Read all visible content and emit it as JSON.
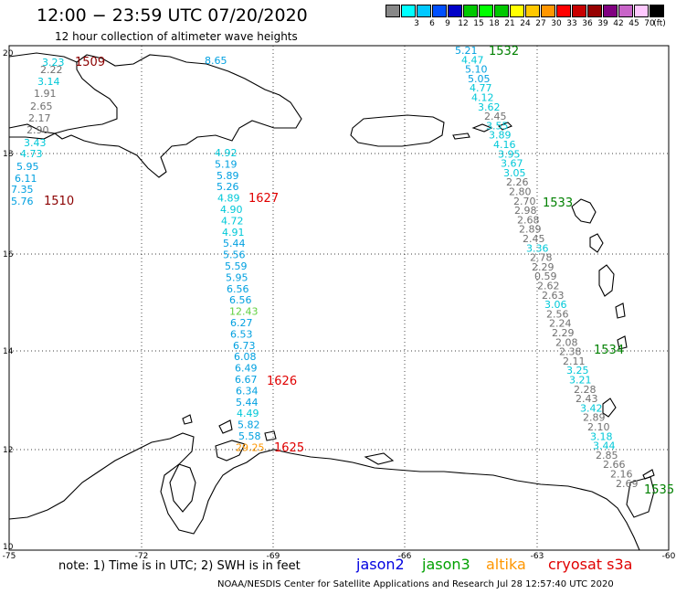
{
  "title": "12:00 − 23:59 UTC 07/20/2020",
  "subtitle": "12 hour collection of altimeter wave heights",
  "colorbar": {
    "unit": "(ft)",
    "boxes": [
      {
        "label": "",
        "color": "#888888"
      },
      {
        "label": "3",
        "color": "#00ffff"
      },
      {
        "label": "6",
        "color": "#00c8ff"
      },
      {
        "label": "9",
        "color": "#0050ff"
      },
      {
        "label": "12",
        "color": "#0000c8"
      },
      {
        "label": "15",
        "color": "#00c800"
      },
      {
        "label": "18",
        "color": "#00ff00"
      },
      {
        "label": "21",
        "color": "#00c800"
      },
      {
        "label": "24",
        "color": "#ffff00"
      },
      {
        "label": "27",
        "color": "#ffc800"
      },
      {
        "label": "30",
        "color": "#ff9600"
      },
      {
        "label": "33",
        "color": "#ff0000"
      },
      {
        "label": "36",
        "color": "#c80000"
      },
      {
        "label": "39",
        "color": "#960000"
      },
      {
        "label": "42",
        "color": "#800080"
      },
      {
        "label": "45",
        "color": "#c864c8"
      },
      {
        "label": "70",
        "color": "#ffc8ff"
      },
      {
        "label": "",
        "color": "#000000"
      }
    ]
  },
  "axes": {
    "lon": [
      "-75",
      "-72",
      "-69",
      "-66",
      "-63",
      "-60"
    ],
    "lat": [
      "20",
      "18",
      "16",
      "14",
      "12",
      "10"
    ]
  },
  "passes": [
    {
      "time": "1509",
      "color": "#8b0000"
    },
    {
      "time": "1510",
      "color": "#8b0000"
    },
    {
      "time": "1627",
      "color": "#e00000"
    },
    {
      "time": "1626",
      "color": "#e00000"
    },
    {
      "time": "1625",
      "color": "#e00000"
    },
    {
      "time": "1532",
      "color": "#008000"
    },
    {
      "time": "1533",
      "color": "#008000"
    },
    {
      "time": "1534",
      "color": "#008000"
    },
    {
      "time": "1535",
      "color": "#008000"
    }
  ],
  "swh": [
    {
      "v": "3.23",
      "c": "#00c8d8"
    },
    {
      "v": "2.22",
      "c": "#707070"
    },
    {
      "v": "3.14",
      "c": "#00c8d8"
    },
    {
      "v": "1.91",
      "c": "#707070"
    },
    {
      "v": "2.65",
      "c": "#707070"
    },
    {
      "v": "2.17",
      "c": "#707070"
    },
    {
      "v": "2.90",
      "c": "#707070"
    },
    {
      "v": "3.43",
      "c": "#00c8d8"
    },
    {
      "v": "4.73",
      "c": "#00c8d8"
    },
    {
      "v": "5.95",
      "c": "#00a0e0"
    },
    {
      "v": "6.11",
      "c": "#00a0e0"
    },
    {
      "v": "7.35",
      "c": "#00a0e0"
    },
    {
      "v": "5.76",
      "c": "#00a0e0"
    },
    {
      "v": "8.65",
      "c": "#00a0e0"
    },
    {
      "v": "4.92",
      "c": "#00c8d8"
    },
    {
      "v": "5.19",
      "c": "#00a0e0"
    },
    {
      "v": "5.89",
      "c": "#00a0e0"
    },
    {
      "v": "5.26",
      "c": "#00a0e0"
    },
    {
      "v": "4.89",
      "c": "#00c8d8"
    },
    {
      "v": "4.90",
      "c": "#00c8d8"
    },
    {
      "v": "4.72",
      "c": "#00c8d8"
    },
    {
      "v": "4.91",
      "c": "#00c8d8"
    },
    {
      "v": "5.44",
      "c": "#00a0e0"
    },
    {
      "v": "5.56",
      "c": "#00a0e0"
    },
    {
      "v": "5.59",
      "c": "#00a0e0"
    },
    {
      "v": "5.95",
      "c": "#00a0e0"
    },
    {
      "v": "6.56",
      "c": "#00a0e0"
    },
    {
      "v": "6.56",
      "c": "#00a0e0"
    },
    {
      "v": "12.43",
      "c": "#60d040"
    },
    {
      "v": "6.27",
      "c": "#00a0e0"
    },
    {
      "v": "6.53",
      "c": "#00a0e0"
    },
    {
      "v": "6.73",
      "c": "#00a0e0"
    },
    {
      "v": "6.08",
      "c": "#00a0e0"
    },
    {
      "v": "6.49",
      "c": "#00a0e0"
    },
    {
      "v": "6.67",
      "c": "#00a0e0"
    },
    {
      "v": "6.34",
      "c": "#00a0e0"
    },
    {
      "v": "5.44",
      "c": "#00a0e0"
    },
    {
      "v": "4.49",
      "c": "#00c8d8"
    },
    {
      "v": "5.82",
      "c": "#00a0e0"
    },
    {
      "v": "5.58",
      "c": "#00a0e0"
    },
    {
      "v": "29.25",
      "c": "#ff9600"
    },
    {
      "v": "5.21",
      "c": "#00a0e0"
    },
    {
      "v": "4.47",
      "c": "#00c8d8"
    },
    {
      "v": "5.10",
      "c": "#00a0e0"
    },
    {
      "v": "5.05",
      "c": "#00a0e0"
    },
    {
      "v": "4.77",
      "c": "#00c8d8"
    },
    {
      "v": "4.12",
      "c": "#00c8d8"
    },
    {
      "v": "3.62",
      "c": "#00c8d8"
    },
    {
      "v": "2.45",
      "c": "#707070"
    },
    {
      "v": "3.55",
      "c": "#00c8d8"
    },
    {
      "v": "3.89",
      "c": "#00c8d8"
    },
    {
      "v": "4.16",
      "c": "#00c8d8"
    },
    {
      "v": "3.95",
      "c": "#00c8d8"
    },
    {
      "v": "3.67",
      "c": "#00c8d8"
    },
    {
      "v": "3.05",
      "c": "#00c8d8"
    },
    {
      "v": "2.26",
      "c": "#707070"
    },
    {
      "v": "2.80",
      "c": "#707070"
    },
    {
      "v": "2.70",
      "c": "#707070"
    },
    {
      "v": "2.98",
      "c": "#707070"
    },
    {
      "v": "2.68",
      "c": "#707070"
    },
    {
      "v": "2.89",
      "c": "#707070"
    },
    {
      "v": "2.45",
      "c": "#707070"
    },
    {
      "v": "3.36",
      "c": "#00c8d8"
    },
    {
      "v": "2.78",
      "c": "#707070"
    },
    {
      "v": "2.29",
      "c": "#707070"
    },
    {
      "v": "0.59",
      "c": "#707070"
    },
    {
      "v": "2.62",
      "c": "#707070"
    },
    {
      "v": "2.63",
      "c": "#707070"
    },
    {
      "v": "3.06",
      "c": "#00c8d8"
    },
    {
      "v": "2.56",
      "c": "#707070"
    },
    {
      "v": "2.24",
      "c": "#707070"
    },
    {
      "v": "2.29",
      "c": "#707070"
    },
    {
      "v": "2.08",
      "c": "#707070"
    },
    {
      "v": "2.38",
      "c": "#707070"
    },
    {
      "v": "2.11",
      "c": "#707070"
    },
    {
      "v": "3.25",
      "c": "#00c8d8"
    },
    {
      "v": "3.21",
      "c": "#00c8d8"
    },
    {
      "v": "2.28",
      "c": "#707070"
    },
    {
      "v": "2.43",
      "c": "#707070"
    },
    {
      "v": "3.42",
      "c": "#00c8d8"
    },
    {
      "v": "2.89",
      "c": "#707070"
    },
    {
      "v": "2.10",
      "c": "#707070"
    },
    {
      "v": "3.18",
      "c": "#00c8d8"
    },
    {
      "v": "3.44",
      "c": "#00c8d8"
    },
    {
      "v": "2.85",
      "c": "#707070"
    },
    {
      "v": "2.66",
      "c": "#707070"
    },
    {
      "v": "2.16",
      "c": "#707070"
    },
    {
      "v": "2.69",
      "c": "#707070"
    }
  ],
  "note": "note: 1) Time is in UTC; 2) SWH is in feet",
  "satellites": [
    {
      "name": "jason2",
      "color": "#0000e0"
    },
    {
      "name": "jason3",
      "color": "#00a000"
    },
    {
      "name": "altika",
      "color": "#ff9600"
    },
    {
      "name": "cryosat s3a",
      "color": "#e00000"
    }
  ],
  "credit": "NOAA/NESDIS Center for Satellite Applications and Research    Jul 28 12:57:40 UTC 2020"
}
